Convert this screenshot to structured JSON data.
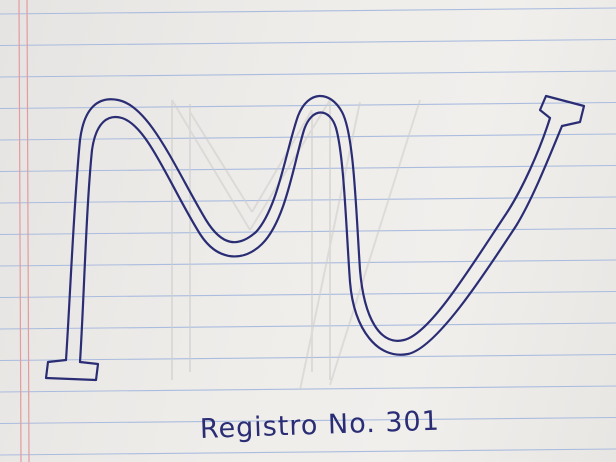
{
  "image": {
    "paper": {
      "kind": "ruled notebook paper",
      "background_color": "#eceae7",
      "rule_color": "#9fb4de",
      "margin_line_color": "#e49aa0"
    },
    "drawing": {
      "subject": "hand-drawn outlined tube bending into an M-like wave shape with flat end caps",
      "ink_color": "#2a2d74",
      "ghost_color": "#cfcdcb"
    },
    "caption": {
      "text": "Registro No. 301"
    }
  }
}
